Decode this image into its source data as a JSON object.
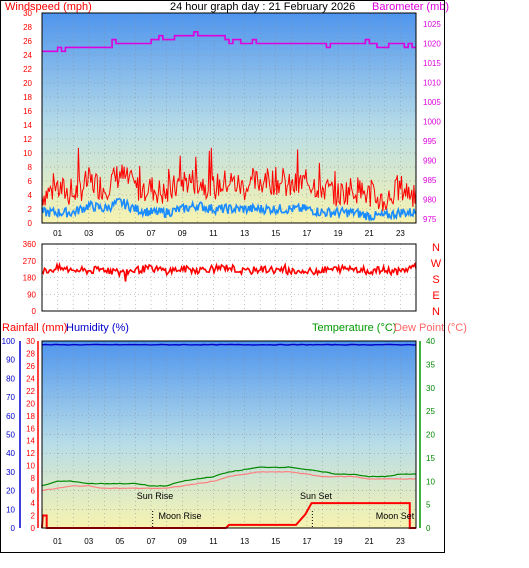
{
  "colors": {
    "red": "#ff0000",
    "magenta": "#dd00dd",
    "blue": "#0000cc",
    "green": "#009900",
    "dew": "#ff6666",
    "black": "#000000",
    "sky_top": "#5aa0f0",
    "sky_bottom": "#f5f2b4",
    "wind_gust": "#ff0000",
    "wind_avg": "#1a8cff",
    "temp_line": "#008800",
    "dew_line": "#ff8080",
    "rain_line": "#ff0000",
    "humidity_line": "#0000cc"
  },
  "chart_data": [
    {
      "type": "line",
      "title": "24 hour graph day : 21 February 2026",
      "ylabel": "Windspeed (mph)",
      "y2label": "Barometer (mb)",
      "ylim": [
        0,
        30
      ],
      "y2lim": [
        975,
        1030
      ],
      "yticks": [
        "30",
        "28",
        "26",
        "24",
        "22",
        "20",
        "18",
        "16",
        "14",
        "12",
        "10",
        "8",
        "6",
        "4",
        "2",
        "0"
      ],
      "y2ticks": [
        "1025",
        "1020",
        "1015",
        "1010",
        "1005",
        "1000",
        "995",
        "990",
        "985",
        "980",
        "975"
      ],
      "xticks": [
        "01",
        "03",
        "05",
        "07",
        "09",
        "11",
        "13",
        "15",
        "17",
        "19",
        "21",
        "23"
      ],
      "x": [
        0,
        1,
        2,
        3,
        4,
        5,
        6,
        7,
        8,
        9,
        10,
        11,
        12,
        13,
        14,
        15,
        16,
        17,
        18,
        19,
        20,
        21,
        22,
        23,
        24
      ],
      "series": [
        {
          "key": "gust",
          "values": [
            4,
            5,
            4,
            6,
            5,
            7,
            5,
            5,
            4,
            6,
            6,
            5,
            6,
            5,
            6,
            6,
            5,
            6,
            5,
            4,
            5,
            4,
            3,
            5,
            4
          ]
        },
        {
          "key": "avg",
          "values": [
            1.5,
            1.5,
            1.5,
            2.5,
            2,
            3,
            2,
            1.5,
            1.5,
            2,
            2.5,
            2,
            2,
            2,
            2,
            2,
            2,
            2,
            1.5,
            1.5,
            1.5,
            1,
            1,
            1.5,
            1.5
          ]
        },
        {
          "key": "pressure",
          "values": [
            1018,
            1018,
            1019,
            1019,
            1019,
            1020,
            1020,
            1020,
            1021,
            1022,
            1022,
            1022,
            1021,
            1020,
            1020,
            1020,
            1020,
            1020,
            1020,
            1020,
            1020,
            1020,
            1020,
            1020,
            1019
          ]
        }
      ],
      "grid": true,
      "background": "gradient"
    },
    {
      "type": "line",
      "title": "",
      "ylabel": "",
      "yticks": [
        "360",
        "270",
        "180",
        "90",
        "0"
      ],
      "ylim": [
        0,
        360
      ],
      "compass": [
        "N",
        "W",
        "S",
        "E",
        "N"
      ],
      "xticks": [],
      "x": [
        0,
        1,
        2,
        3,
        4,
        5,
        6,
        7,
        8,
        9,
        10,
        11,
        12,
        13,
        14,
        15,
        16,
        17,
        18,
        19,
        20,
        21,
        22,
        23,
        24
      ],
      "series": [
        {
          "key": "direction",
          "values": [
            210,
            230,
            220,
            215,
            225,
            205,
            220,
            230,
            215,
            225,
            220,
            230,
            235,
            210,
            225,
            220,
            215,
            210,
            220,
            225,
            230,
            215,
            220,
            210,
            245
          ]
        }
      ],
      "grid": true
    },
    {
      "type": "line",
      "title": "",
      "ylabel_left_outer": "Rainfall (mm)",
      "ylabel_left_inner": "Humidity (%)",
      "ylabel_right": "Temperature (°C)",
      "ylabel_right2": "Dew Point (°C)",
      "humidity_ticks": [
        "100",
        "90",
        "80",
        "70",
        "60",
        "50",
        "40",
        "30",
        "20",
        "10",
        "0"
      ],
      "rain_ticks": [
        "30",
        "28",
        "26",
        "24",
        "22",
        "20",
        "18",
        "16",
        "14",
        "12",
        "10",
        "8",
        "6",
        "4",
        "2",
        "0"
      ],
      "temp_ticks": [
        "40",
        "35",
        "30",
        "25",
        "20",
        "15",
        "10",
        "5",
        "0"
      ],
      "xticks": [
        "01",
        "03",
        "05",
        "07",
        "09",
        "11",
        "13",
        "15",
        "17",
        "19",
        "21",
        "23"
      ],
      "x": [
        0,
        1,
        2,
        3,
        4,
        5,
        6,
        7,
        8,
        9,
        10,
        11,
        12,
        13,
        14,
        15,
        16,
        17,
        18,
        19,
        20,
        21,
        22,
        23,
        24
      ],
      "series": [
        {
          "key": "humidity",
          "values": [
            98,
            98,
            98,
            98,
            98,
            98,
            98,
            98,
            98,
            98,
            98,
            98,
            98,
            98,
            98,
            98,
            98,
            98,
            98,
            98,
            98,
            98,
            98,
            98,
            98
          ]
        },
        {
          "key": "temperature",
          "values": [
            9,
            10,
            10,
            9.5,
            9.5,
            9.5,
            9.5,
            9,
            9,
            10,
            10.5,
            11,
            12,
            12.5,
            13,
            13,
            13,
            12.5,
            12,
            11.5,
            11.5,
            11,
            11,
            11.5,
            11.5
          ]
        },
        {
          "key": "dewpoint",
          "values": [
            8,
            8.5,
            9,
            9,
            8.5,
            8.5,
            8.5,
            8.5,
            8.5,
            9,
            9.5,
            10,
            11,
            11.5,
            12,
            12,
            12,
            11.5,
            11,
            11,
            11,
            10.5,
            10.5,
            10.5,
            10.5
          ]
        },
        {
          "key": "rainfall",
          "values": [
            2,
            0,
            0,
            0,
            0,
            0,
            0,
            0,
            0,
            0,
            0,
            0,
            0.2,
            0.5,
            0.5,
            0.5,
            0.5,
            2,
            4,
            4,
            4,
            4,
            4,
            4,
            0
          ]
        }
      ],
      "annotations": [
        "Sun Rise",
        "Moon Rise",
        "Sun Set",
        "Moon Set"
      ],
      "grid": true
    }
  ]
}
